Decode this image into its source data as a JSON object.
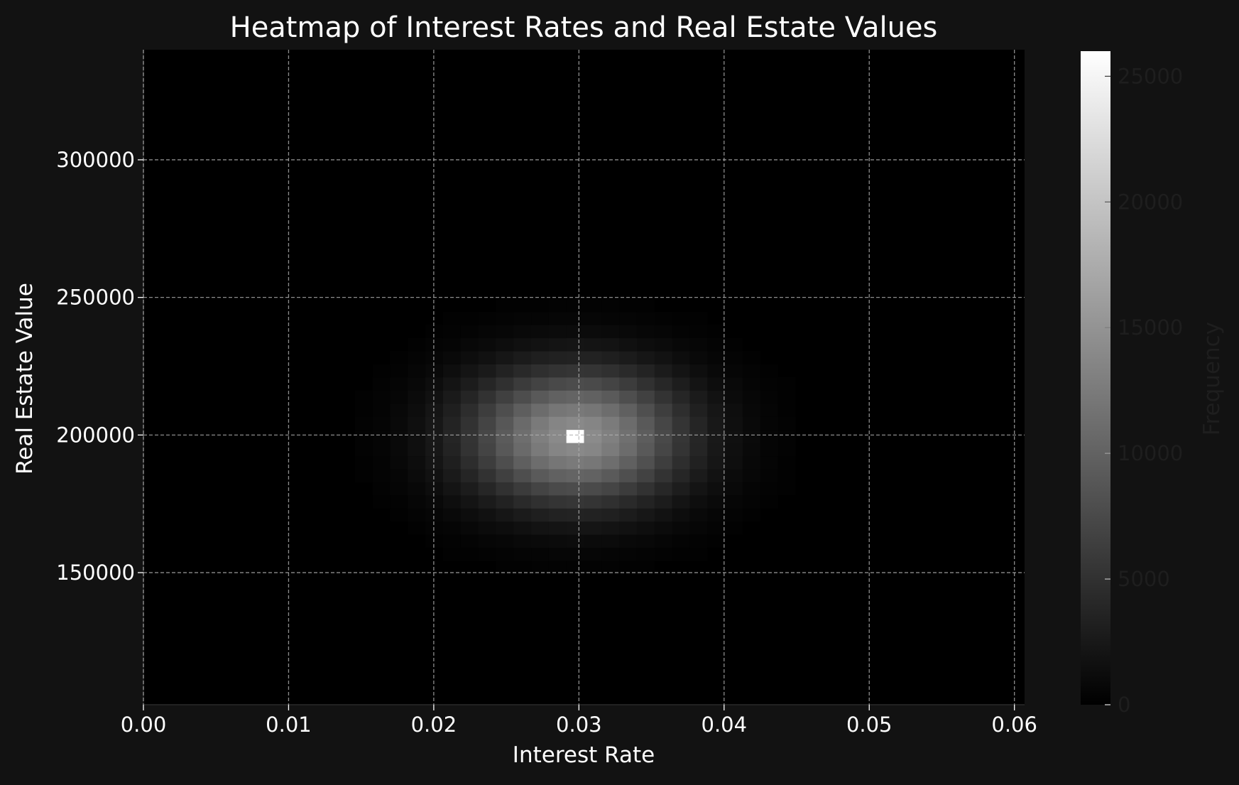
{
  "chart_data": {
    "type": "heatmap",
    "title": "Heatmap of Interest Rates and Real Estate Values",
    "xlabel": "Interest Rate",
    "ylabel": "Real Estate Value",
    "colorbar_label": "Frequency",
    "xlim": [
      0.0,
      0.0607
    ],
    "ylim": [
      102000,
      340000
    ],
    "x_ticks": [
      0.0,
      0.01,
      0.02,
      0.03,
      0.04,
      0.05,
      0.06
    ],
    "x_tick_labels": [
      "0.00",
      "0.01",
      "0.02",
      "0.03",
      "0.04",
      "0.05",
      "0.06"
    ],
    "y_ticks": [
      150000,
      200000,
      250000,
      300000
    ],
    "y_tick_labels": [
      "150000",
      "200000",
      "250000",
      "300000"
    ],
    "colorbar_range": [
      0,
      26000
    ],
    "colorbar_ticks": [
      0,
      5000,
      10000,
      15000,
      20000,
      25000
    ],
    "colorbar_tick_labels": [
      "0",
      "5000",
      "10000",
      "15000",
      "20000",
      "25000"
    ],
    "colormap": "gray",
    "grid": true,
    "peak": {
      "x": 0.0297,
      "y": 200000,
      "frequency": 26000
    },
    "distribution": {
      "x_center": 0.0298,
      "x_spread": 0.0052,
      "y_center": 199500,
      "y_spread": 17000,
      "peak_frequency": 26000,
      "central_bin_peak": 26000,
      "neighbor_peak": 14500,
      "x_bins": 50,
      "y_bins": 50,
      "x_range": [
        0.0,
        0.0607
      ],
      "y_range": [
        102000,
        340000
      ]
    }
  },
  "colors": {
    "background": "#121212",
    "axes_background": "#000000",
    "text": "#ffffff",
    "grid": "#b0b0b0",
    "colorbar_text": "#1e1e1e"
  }
}
